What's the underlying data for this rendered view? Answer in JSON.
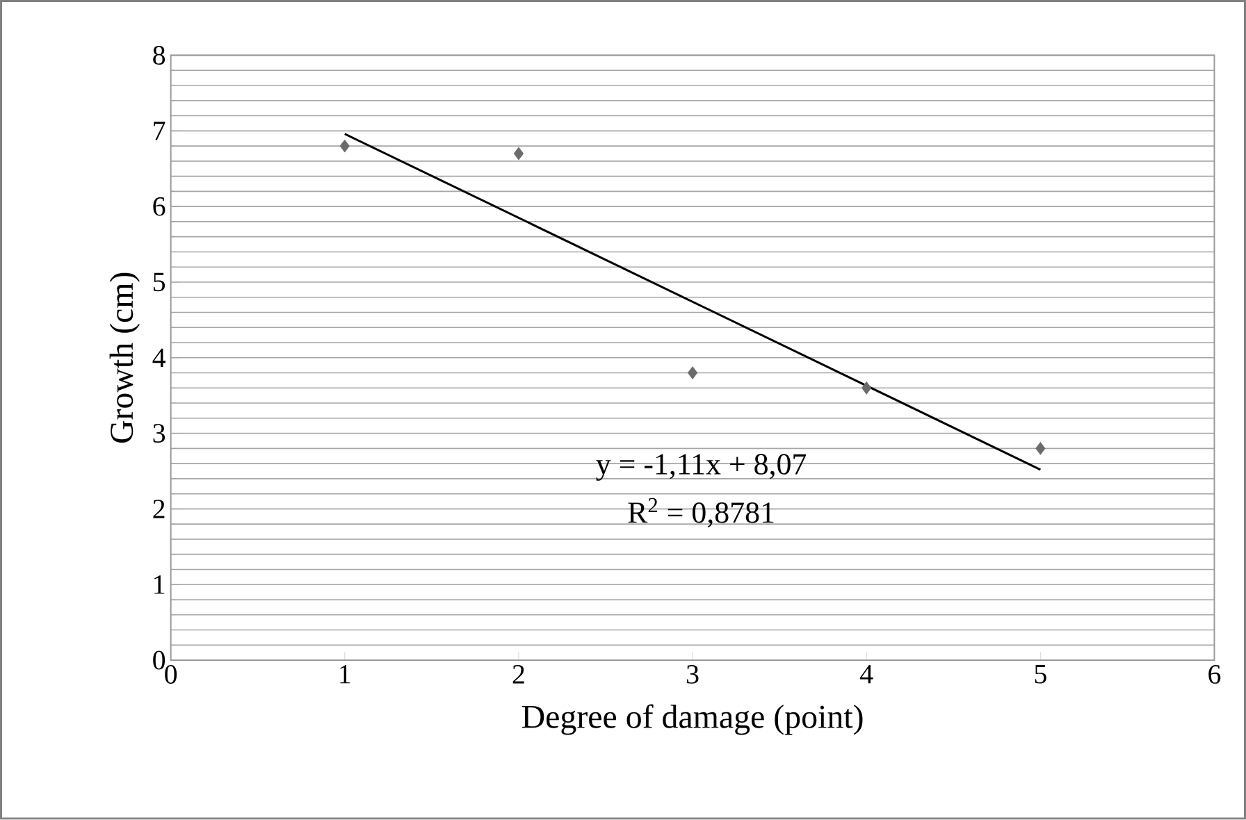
{
  "chart_data": {
    "type": "scatter",
    "xlabel": "Degree of damage (point)",
    "ylabel": "Growth (cm)",
    "series": [
      {
        "color": "#6b6b6b",
        "marker": "diamond",
        "x": [
          1,
          2,
          3,
          4,
          5
        ],
        "values": [
          6.8,
          6.7,
          3.8,
          3.6,
          2.8
        ]
      },
      {
        "type": "line",
        "color": "#000000",
        "marker": "none",
        "line_style": "solid",
        "x": [
          1,
          5
        ],
        "values": [
          6.96,
          2.52
        ]
      }
    ],
    "annotations": [
      "y = -1,11x + 8,07",
      "R$^{2}$ = 0,8781"
    ],
    "xlim": [
      0,
      6
    ],
    "xticks": [
      0,
      1,
      2,
      3,
      4,
      5,
      6
    ],
    "ylim": [
      0,
      8
    ],
    "yticks": [
      0,
      1,
      2,
      3,
      4,
      5,
      6,
      7,
      8
    ],
    "grid": "y"
  }
}
